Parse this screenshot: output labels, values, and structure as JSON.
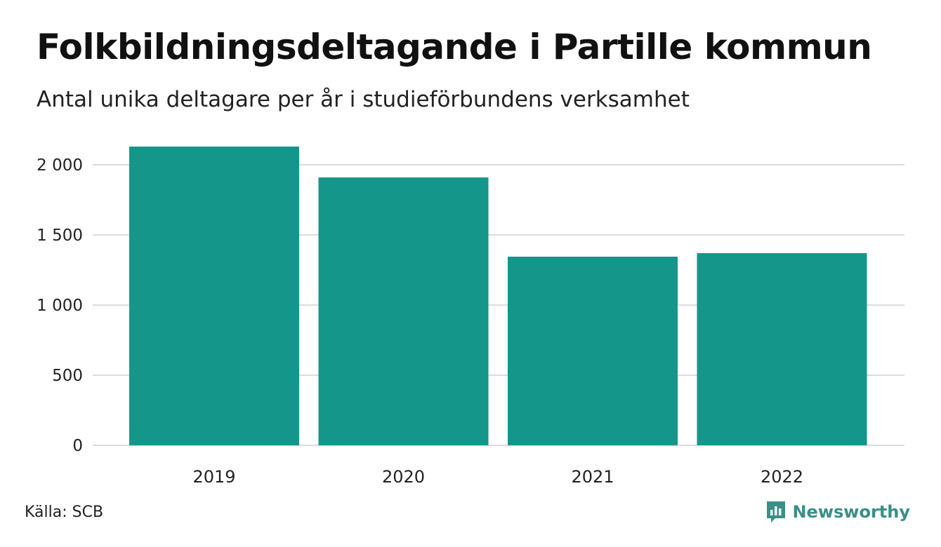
{
  "header": {
    "title": "Folkbildningsdeltagande i Partille kommun",
    "subtitle": "Antal unika deltagare per år i studieförbundens verksamhet"
  },
  "footer": {
    "source": "Källa: SCB",
    "brand": "Newsworthy",
    "brand_icon": "chart-speech-bubble-icon"
  },
  "colors": {
    "bar": "#14968a",
    "grid": "#dcdcdc",
    "brand": "#3a8f86"
  },
  "chart_data": {
    "type": "bar",
    "categories": [
      "2019",
      "2020",
      "2021",
      "2022"
    ],
    "values": [
      2130,
      1910,
      1345,
      1370
    ],
    "ylim": [
      0,
      2130
    ],
    "yticks": [
      0,
      500,
      1000,
      1500,
      2000
    ],
    "ytick_labels": [
      "0",
      "500",
      "1 000",
      "1 500",
      "2 000"
    ],
    "grid": true,
    "legend": false
  }
}
